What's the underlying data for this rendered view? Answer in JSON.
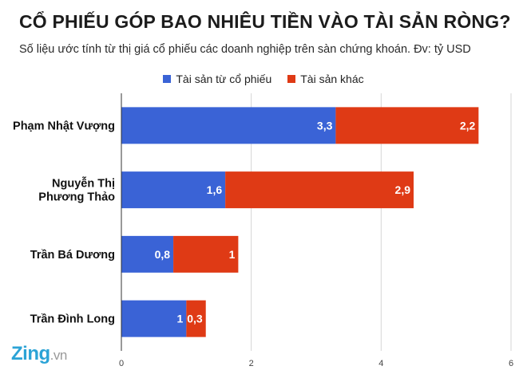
{
  "header": {
    "title": "CỔ PHIẾU GÓP BAO NHIÊU TIỀN VÀO TÀI SẢN RÒNG?",
    "subtitle": "Số liệu ước tính từ thị giá cổ phiếu các doanh nghiệp trên sàn chứng khoán. Đv: tỷ USD"
  },
  "logo": {
    "brand": "Zing",
    "suffix": ".vn"
  },
  "chart_data": {
    "type": "bar",
    "orientation": "horizontal",
    "stacked": true,
    "title": "CỔ PHIẾU GÓP BAO NHIÊU TIỀN VÀO TÀI SẢN RÒNG?",
    "subtitle": "Số liệu ước tính từ thị giá cổ phiếu các doanh nghiệp trên sàn chứng khoán. Đv: tỷ USD",
    "categories": [
      [
        "Phạm Nhật Vượng"
      ],
      [
        "Nguyễn Thị",
        "Phương Thảo"
      ],
      [
        "Trần Bá Dương"
      ],
      [
        "Trần Đình Long"
      ]
    ],
    "series": [
      {
        "name": "Tài sản từ cổ phiếu",
        "color": "#3a63d6",
        "values": [
          3.3,
          1.6,
          0.8,
          1
        ],
        "labels": [
          "3,3",
          "1,6",
          "0,8",
          "1"
        ]
      },
      {
        "name": "Tài sản khác",
        "color": "#df3a15",
        "values": [
          2.2,
          2.9,
          1,
          0.3
        ],
        "labels": [
          "2,2",
          "2,9",
          "1",
          "0,3"
        ]
      }
    ],
    "xlim": [
      0,
      6
    ],
    "xticks": [
      0,
      2,
      4,
      6
    ],
    "grid": "vertical",
    "legend": "top-center"
  }
}
